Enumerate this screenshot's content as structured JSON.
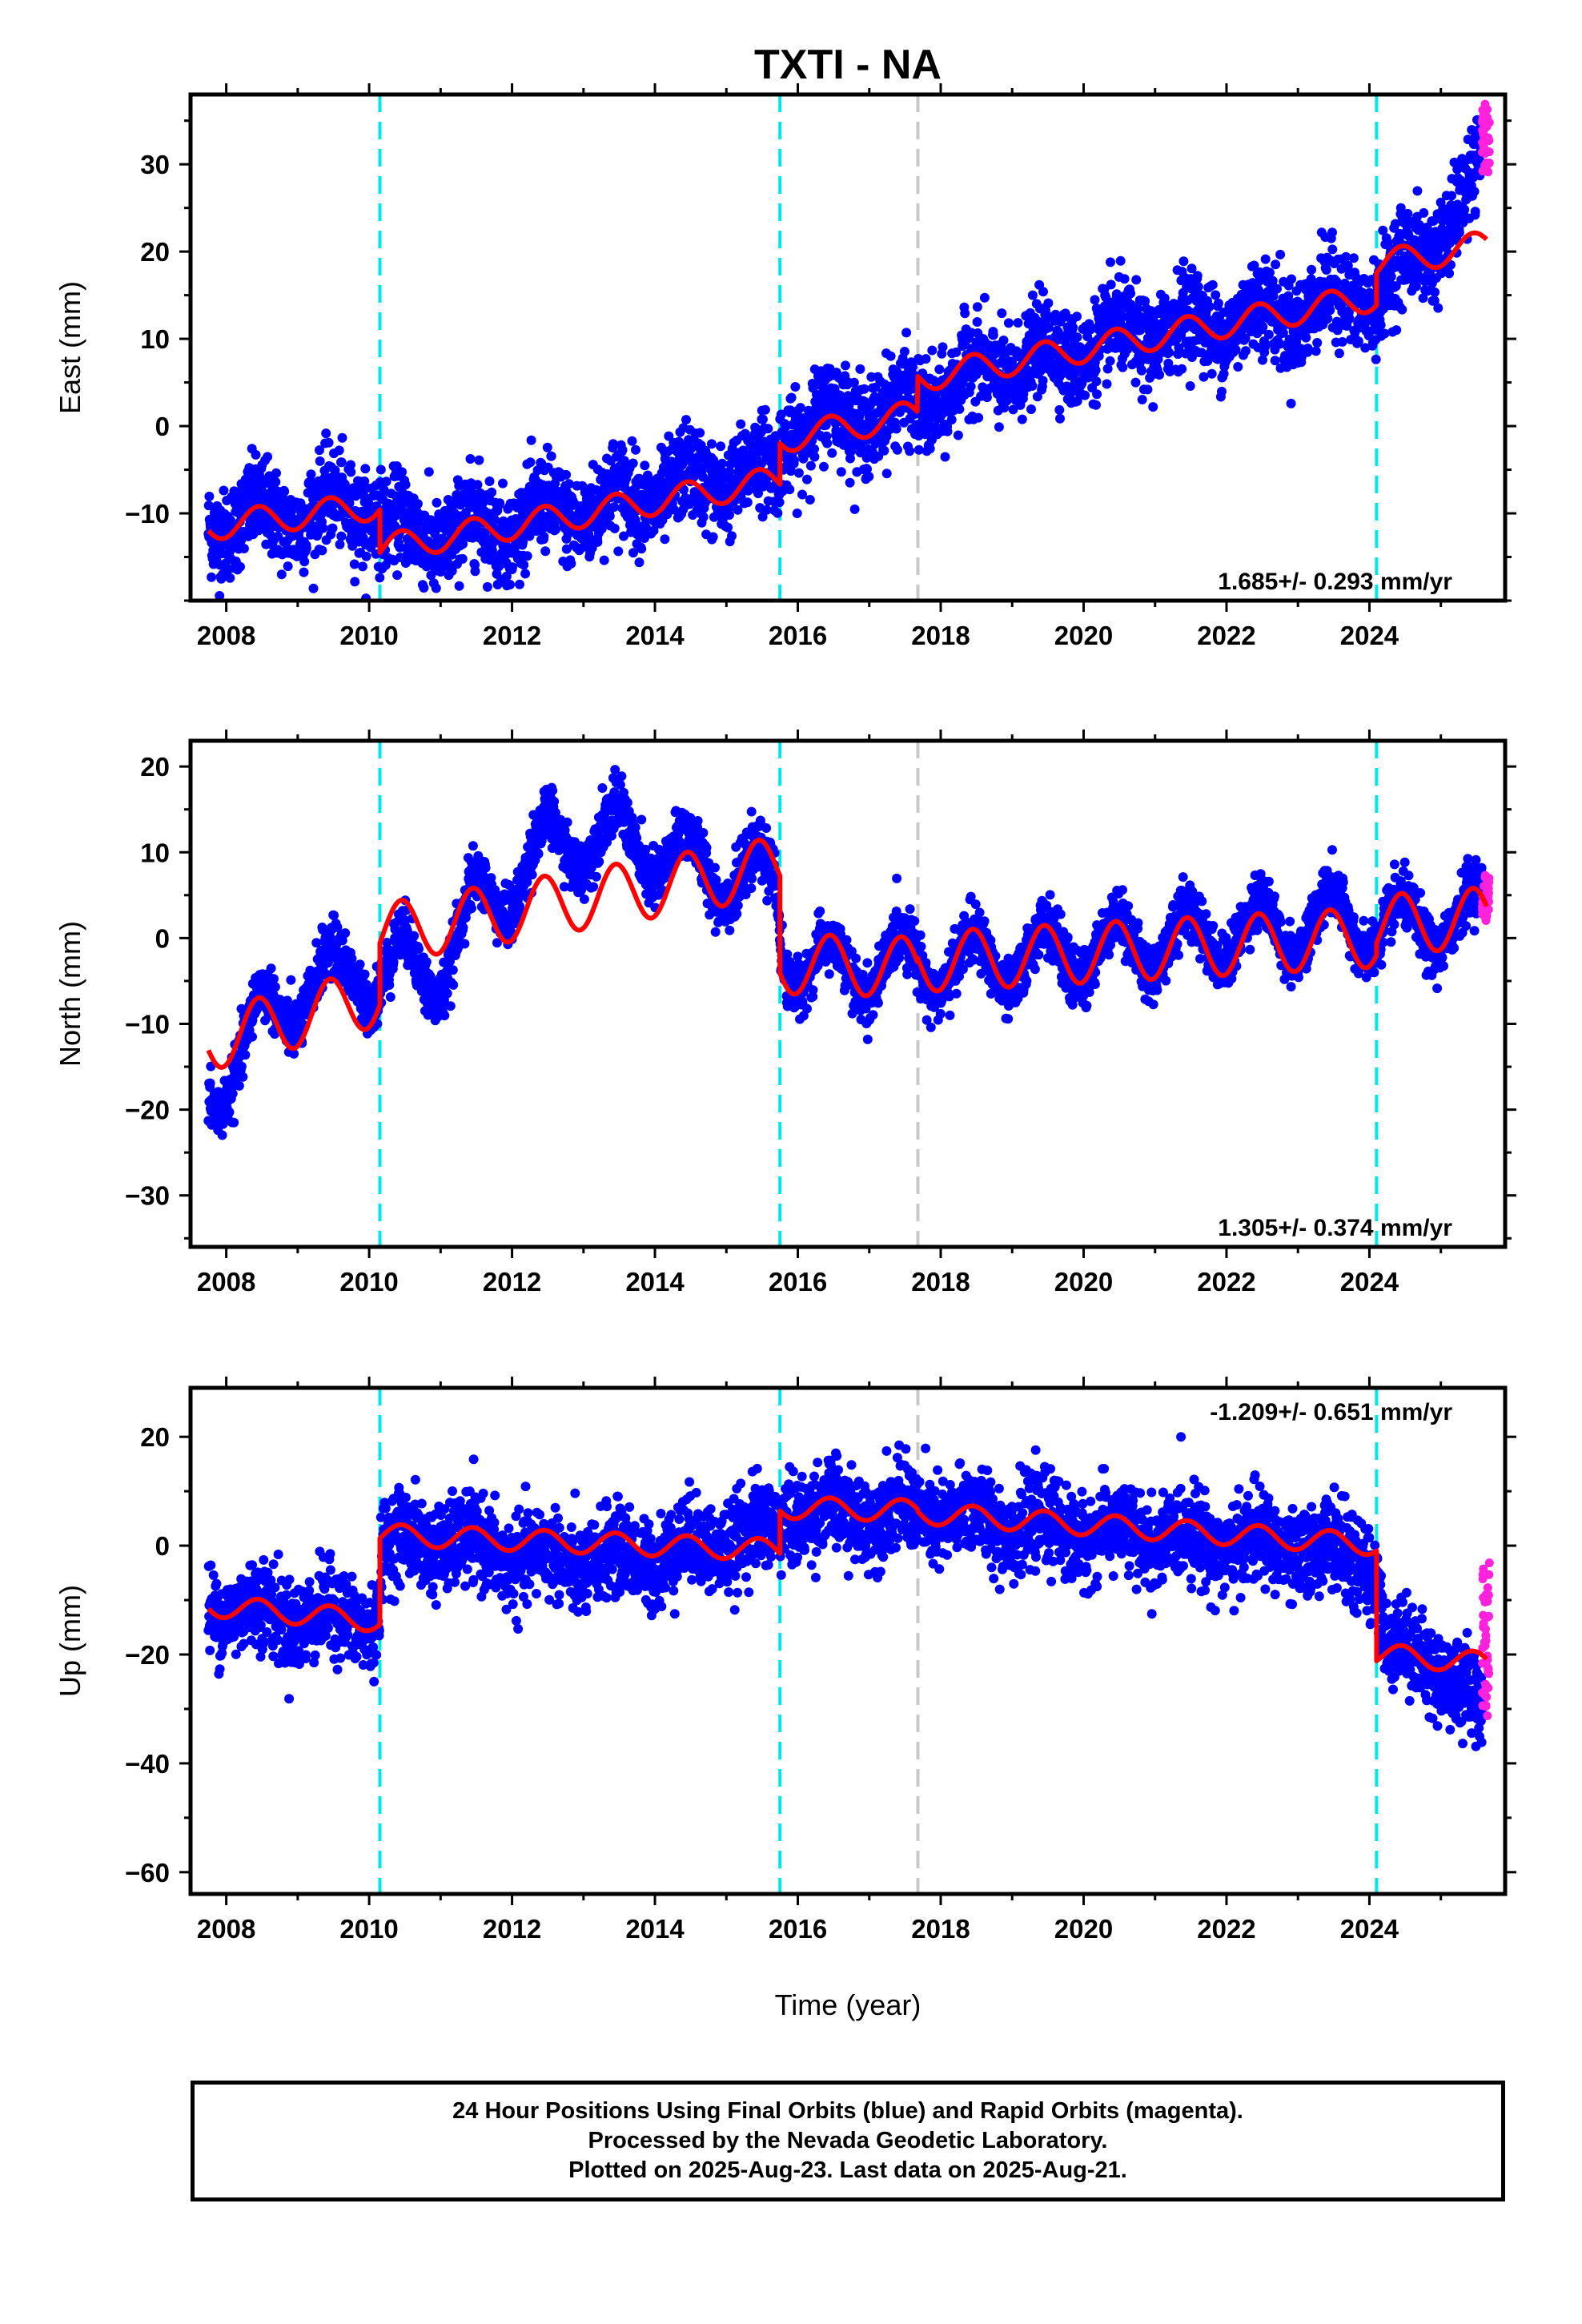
{
  "colors": {
    "final_orbits": "#0000ff",
    "rapid_orbits": "#ff22dd",
    "model": "#ff0000",
    "equipment_change": "#00e5e5",
    "earthquake": "#c8c8c8"
  },
  "chart_data": {
    "type": "scatter",
    "title": "TXTI - NA",
    "xlabel": "Time (year)",
    "xlim": [
      2007.5,
      2025.9
    ],
    "x_ticks": [
      2008,
      2010,
      2012,
      2014,
      2016,
      2018,
      2020,
      2022,
      2024
    ],
    "vertical_lines": [
      {
        "x": 2010.15,
        "color": "cyan"
      },
      {
        "x": 2015.75,
        "color": "cyan"
      },
      {
        "x": 2017.68,
        "color": "gray"
      },
      {
        "x": 2024.1,
        "color": "cyan"
      }
    ],
    "panels": [
      {
        "id": "east",
        "ylabel": "East (mm)",
        "ylim": [
          -20,
          38
        ],
        "y_ticks": [
          -10,
          0,
          10,
          20,
          30
        ],
        "rate": "1.685+/- 0.293 mm/yr",
        "observed_trend": [
          [
            2007.75,
            -11
          ],
          [
            2008.5,
            -10.5
          ],
          [
            2009.5,
            -9.5
          ],
          [
            2010.1,
            -9
          ],
          [
            2010.25,
            -12
          ],
          [
            2011,
            -12.5
          ],
          [
            2012,
            -11
          ],
          [
            2013,
            -9.5
          ],
          [
            2014,
            -7.5
          ],
          [
            2015,
            -6
          ],
          [
            2015.7,
            -5
          ],
          [
            2015.8,
            -1
          ],
          [
            2016.5,
            1
          ],
          [
            2017.6,
            2
          ],
          [
            2018.5,
            6
          ],
          [
            2019.5,
            8
          ],
          [
            2020.5,
            10
          ],
          [
            2021.5,
            11.5
          ],
          [
            2022.5,
            12.5
          ],
          [
            2023.5,
            14
          ],
          [
            2024.1,
            15
          ],
          [
            2024.6,
            19
          ],
          [
            2025,
            22
          ],
          [
            2025.4,
            26
          ],
          [
            2025.65,
            32
          ]
        ],
        "observed_amplitude": 1.8,
        "observed_scatter": 2.6,
        "rapid": {
          "x_range": [
            2025.58,
            2025.68
          ],
          "y_range": [
            29,
            37
          ]
        },
        "model": {
          "segments": [
            {
              "x_start": 2007.75,
              "x_end": 2010.15,
              "y0": -11.5,
              "slope": 1.0
            },
            {
              "x_start": 2010.15,
              "x_end": 2015.75,
              "y0": -14.0,
              "slope": 1.4
            },
            {
              "x_start": 2015.75,
              "x_end": 2017.68,
              "y0": -1.5,
              "slope": 1.5
            },
            {
              "x_start": 2017.68,
              "x_end": 2024.1,
              "y0": 5.5,
              "slope": 1.45
            },
            {
              "x_start": 2024.1,
              "x_end": 2025.65,
              "y0": 18.5,
              "slope": 1.5
            }
          ],
          "amplitude": 1.6
        }
      },
      {
        "id": "north",
        "ylabel": "North (mm)",
        "ylim": [
          -36,
          23
        ],
        "y_ticks": [
          -30,
          -20,
          -10,
          0,
          10,
          20
        ],
        "rate": "1.305+/- 0.374 mm/yr",
        "observed_trend": [
          [
            2007.75,
            -18
          ],
          [
            2008.2,
            -14
          ],
          [
            2008.5,
            -9
          ],
          [
            2009.2,
            -6
          ],
          [
            2009.8,
            -3
          ],
          [
            2010.1,
            -5
          ],
          [
            2010.5,
            -3
          ],
          [
            2011,
            -4
          ],
          [
            2011.5,
            4
          ],
          [
            2012,
            6
          ],
          [
            2012.5,
            11
          ],
          [
            2013.5,
            12
          ],
          [
            2014,
            10
          ],
          [
            2014.8,
            8
          ],
          [
            2015.7,
            6
          ],
          [
            2015.8,
            -2
          ],
          [
            2016.5,
            -4
          ],
          [
            2017.5,
            -3
          ],
          [
            2018.5,
            -3
          ],
          [
            2019.5,
            -2
          ],
          [
            2020.5,
            -1
          ],
          [
            2021.5,
            0
          ],
          [
            2022.5,
            1
          ],
          [
            2023.5,
            2
          ],
          [
            2024.5,
            1
          ],
          [
            2025.65,
            3
          ]
        ],
        "observed_amplitude": 3.5,
        "observed_scatter": 1.6,
        "rapid": {
          "x_range": [
            2025.58,
            2025.68
          ],
          "y_range": [
            2,
            8
          ]
        },
        "model": {
          "segments": [
            {
              "x_start": 2007.75,
              "x_end": 2010.15,
              "y0": -12.0,
              "slope": 2.2
            },
            {
              "x_start": 2010.15,
              "x_end": 2015.75,
              "y0": 0.5,
              "slope": 1.4
            },
            {
              "x_start": 2015.75,
              "x_end": 2017.68,
              "y0": -3.0,
              "slope": -0.2
            },
            {
              "x_start": 2017.68,
              "x_end": 2024.1,
              "y0": -2.8,
              "slope": 0.45
            },
            {
              "x_start": 2024.1,
              "x_end": 2025.65,
              "y0": 1.5,
              "slope": 0.6
            }
          ],
          "amplitude": 3.5
        }
      },
      {
        "id": "up",
        "ylabel": "Up (mm)",
        "ylim": [
          -64,
          29
        ],
        "y_ticks": [
          -60,
          -40,
          -20,
          0,
          20
        ],
        "rate": "-1.209+/- 0.651 mm/yr",
        "observed_trend": [
          [
            2007.75,
            -11
          ],
          [
            2009,
            -13
          ],
          [
            2010.1,
            -14
          ],
          [
            2010.2,
            0
          ],
          [
            2011,
            1
          ],
          [
            2012,
            -2
          ],
          [
            2013,
            -3
          ],
          [
            2014,
            -2
          ],
          [
            2015,
            1
          ],
          [
            2015.7,
            3
          ],
          [
            2015.8,
            6
          ],
          [
            2016.5,
            6
          ],
          [
            2017.5,
            6
          ],
          [
            2018.5,
            5
          ],
          [
            2019.5,
            3
          ],
          [
            2020.5,
            2
          ],
          [
            2021.5,
            1
          ],
          [
            2022.5,
            0
          ],
          [
            2023.5,
            -1
          ],
          [
            2024.1,
            -4
          ],
          [
            2024.2,
            -18
          ],
          [
            2025,
            -22
          ],
          [
            2025.65,
            -32
          ]
        ],
        "observed_amplitude": 2.0,
        "observed_scatter": 4.0,
        "rapid": {
          "x_range": [
            2025.58,
            2025.68
          ],
          "y_range": [
            -34,
            -3
          ]
        },
        "model": {
          "segments": [
            {
              "x_start": 2007.75,
              "x_end": 2010.15,
              "y0": -11.0,
              "slope": -1.2
            },
            {
              "x_start": 2010.15,
              "x_end": 2015.75,
              "y0": 2.0,
              "slope": -0.5
            },
            {
              "x_start": 2015.75,
              "x_end": 2017.68,
              "y0": 7.0,
              "slope": -0.3
            },
            {
              "x_start": 2017.68,
              "x_end": 2024.1,
              "y0": 6.0,
              "slope": -0.9
            },
            {
              "x_start": 2024.1,
              "x_end": 2025.65,
              "y0": -20.0,
              "slope": -1.0
            }
          ],
          "amplitude": 2.0
        }
      }
    ]
  },
  "footer": {
    "line1": "24 Hour Positions Using Final Orbits (blue) and Rapid Orbits (magenta).",
    "line2": "Processed by the Nevada Geodetic Laboratory.",
    "line3": "Plotted on 2025-Aug-23. Last data on 2025-Aug-21."
  }
}
